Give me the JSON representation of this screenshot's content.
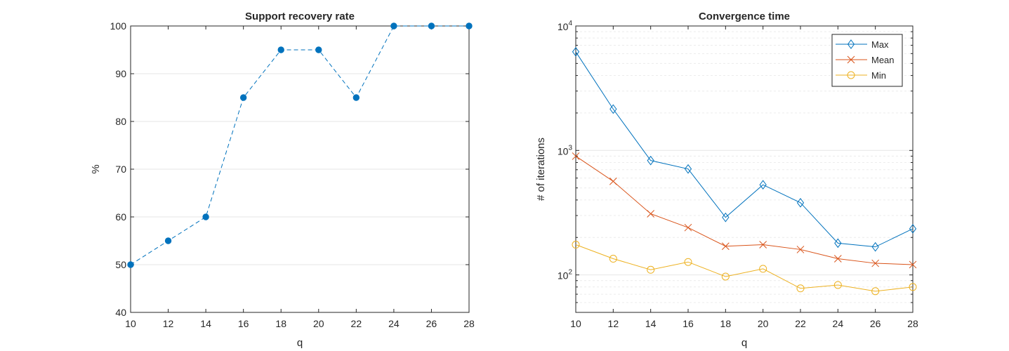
{
  "chart_data": [
    {
      "type": "line",
      "title": "Support recovery rate",
      "xlabel": "q",
      "ylabel": "%",
      "x": [
        10,
        12,
        14,
        16,
        18,
        20,
        22,
        24,
        26,
        28
      ],
      "xlim": [
        10,
        28
      ],
      "ylim": [
        40,
        100
      ],
      "xticks": [
        "10",
        "12",
        "14",
        "16",
        "18",
        "20",
        "22",
        "24",
        "26",
        "28"
      ],
      "yticks": [
        "40",
        "50",
        "60",
        "70",
        "80",
        "90",
        "100"
      ],
      "grid": "horizontal",
      "series": [
        {
          "values": [
            50,
            55,
            60,
            85,
            95,
            95,
            85,
            100,
            100,
            100
          ],
          "color": "#0072BD",
          "line": "dashed",
          "marker": "filled-circle"
        }
      ]
    },
    {
      "type": "line",
      "title": "Convergence time",
      "xlabel": "q",
      "ylabel": "# of iterations",
      "yscale": "log",
      "x": [
        10,
        12,
        14,
        16,
        18,
        20,
        22,
        24,
        26,
        28
      ],
      "xlim": [
        10,
        28
      ],
      "ylim": [
        50,
        10000
      ],
      "xticks": [
        "10",
        "12",
        "14",
        "16",
        "18",
        "20",
        "22",
        "24",
        "26",
        "28"
      ],
      "yticks": [
        {
          "base": "10",
          "exp": "2"
        },
        {
          "base": "10",
          "exp": "3"
        },
        {
          "base": "10",
          "exp": "4"
        }
      ],
      "grid": "horizontal",
      "legend_position": "top-right",
      "series": [
        {
          "name": "Max",
          "values": [
            6200,
            2150,
            830,
            710,
            290,
            530,
            380,
            180,
            168,
            235
          ],
          "color": "#0072BD",
          "marker": "diamond"
        },
        {
          "name": "Mean",
          "values": [
            900,
            565,
            310,
            240,
            170,
            175,
            160,
            135,
            124,
            121
          ],
          "color": "#D95319",
          "marker": "x"
        },
        {
          "name": "Min",
          "values": [
            175,
            135,
            110,
            127,
            97,
            112,
            78,
            83,
            74,
            80
          ],
          "color": "#EDB120",
          "marker": "circle"
        }
      ]
    }
  ]
}
